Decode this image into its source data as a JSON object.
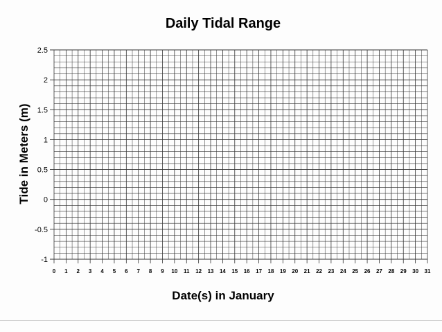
{
  "chart_data": {
    "type": "line",
    "title": "Daily Tidal Range",
    "xlabel": "Date(s) in January",
    "ylabel": "Tide in Meters (m)",
    "x_ticks": [
      0,
      1,
      2,
      3,
      4,
      5,
      6,
      7,
      8,
      9,
      10,
      11,
      12,
      13,
      14,
      15,
      16,
      17,
      18,
      19,
      20,
      21,
      22,
      23,
      24,
      25,
      26,
      27,
      28,
      29,
      30,
      31
    ],
    "y_ticks": [
      "2.5",
      "2",
      "1.5",
      "1",
      "0.5",
      "0",
      "-0.5",
      "-1"
    ],
    "xlim": [
      0,
      31
    ],
    "ylim": [
      -1,
      2.5
    ],
    "grid": true,
    "grid_minor_y_step": 0.1,
    "series": [],
    "colors": {
      "grid": "#333333",
      "text": "#111111"
    }
  }
}
